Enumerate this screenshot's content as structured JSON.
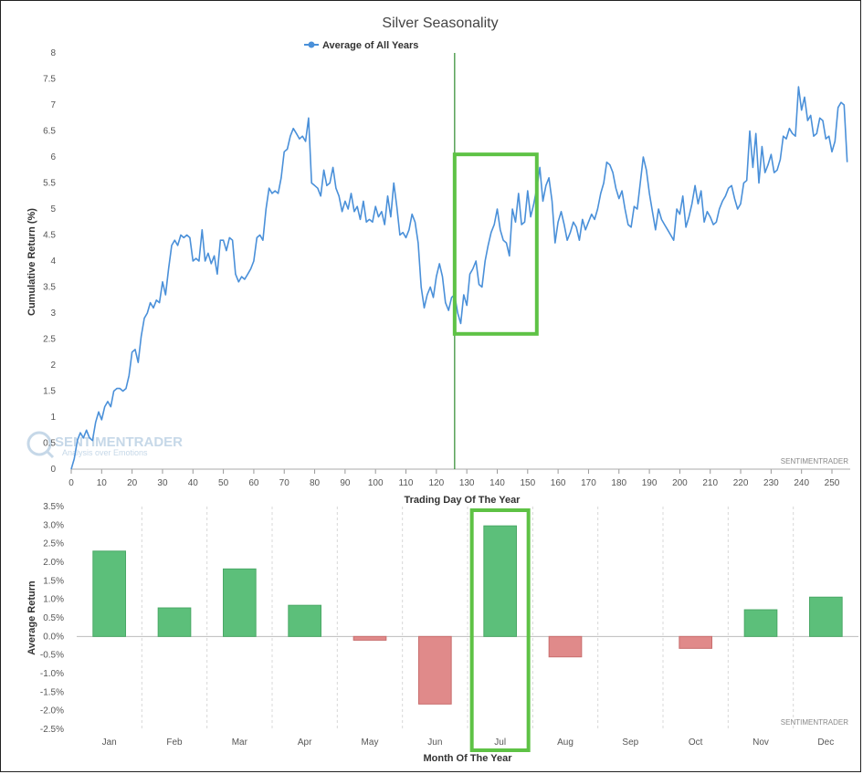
{
  "chart_data": [
    {
      "type": "line",
      "title": "Silver Seasonality",
      "xlabel": "Trading Day Of The Year",
      "ylabel": "Cumulative Return (%)",
      "xlim": [
        0,
        256
      ],
      "ylim": [
        0,
        8
      ],
      "x_ticks": [
        "0",
        "10",
        "20",
        "30",
        "40",
        "50",
        "60",
        "70",
        "80",
        "90",
        "100",
        "110",
        "120",
        "130",
        "140",
        "150",
        "160",
        "170",
        "180",
        "190",
        "200",
        "210",
        "220",
        "230",
        "240",
        "250"
      ],
      "y_ticks": [
        "0",
        "0.5",
        "1",
        "1.5",
        "2",
        "2.5",
        "3",
        "3.5",
        "4",
        "4.5",
        "5",
        "5.5",
        "6",
        "6.5",
        "7",
        "7.5",
        "8"
      ],
      "legend": "top-center",
      "credit": "SENTIMENTRADER",
      "watermark": {
        "name": "SENTIMENTRADER",
        "tagline": "Analysis over Emotions"
      },
      "vertical_marker_x": 126,
      "highlight_x_range": [
        126,
        153
      ],
      "highlight_y_range": [
        2.6,
        6.05
      ],
      "series": [
        {
          "name": "Average of All Years",
          "color": "#4a90d9",
          "points": [
            [
              0,
              0
            ],
            [
              1,
              0.2
            ],
            [
              2,
              0.55
            ],
            [
              3,
              0.7
            ],
            [
              4,
              0.6
            ],
            [
              5,
              0.75
            ],
            [
              6,
              0.6
            ],
            [
              7,
              0.55
            ],
            [
              8,
              0.9
            ],
            [
              9,
              1.1
            ],
            [
              10,
              0.95
            ],
            [
              11,
              1.2
            ],
            [
              12,
              1.3
            ],
            [
              13,
              1.2
            ],
            [
              14,
              1.5
            ],
            [
              15,
              1.55
            ],
            [
              16,
              1.55
            ],
            [
              17,
              1.5
            ],
            [
              18,
              1.55
            ],
            [
              19,
              1.8
            ],
            [
              20,
              2.25
            ],
            [
              21,
              2.3
            ],
            [
              22,
              2.05
            ],
            [
              23,
              2.55
            ],
            [
              24,
              2.9
            ],
            [
              25,
              3.0
            ],
            [
              26,
              3.2
            ],
            [
              27,
              3.1
            ],
            [
              28,
              3.25
            ],
            [
              29,
              3.2
            ],
            [
              30,
              3.6
            ],
            [
              31,
              3.35
            ],
            [
              32,
              3.85
            ],
            [
              33,
              4.3
            ],
            [
              34,
              4.4
            ],
            [
              35,
              4.3
            ],
            [
              36,
              4.5
            ],
            [
              37,
              4.45
            ],
            [
              38,
              4.5
            ],
            [
              39,
              4.45
            ],
            [
              40,
              4.0
            ],
            [
              41,
              4.05
            ],
            [
              42,
              4.0
            ],
            [
              43,
              4.6
            ],
            [
              44,
              4.0
            ],
            [
              45,
              4.15
            ],
            [
              46,
              3.95
            ],
            [
              47,
              4.1
            ],
            [
              48,
              3.75
            ],
            [
              49,
              4.4
            ],
            [
              50,
              4.4
            ],
            [
              51,
              4.2
            ],
            [
              52,
              4.45
            ],
            [
              53,
              4.4
            ],
            [
              54,
              3.75
            ],
            [
              55,
              3.6
            ],
            [
              56,
              3.7
            ],
            [
              57,
              3.65
            ],
            [
              58,
              3.75
            ],
            [
              59,
              3.85
            ],
            [
              60,
              4.0
            ],
            [
              61,
              4.45
            ],
            [
              62,
              4.5
            ],
            [
              63,
              4.4
            ],
            [
              64,
              5.0
            ],
            [
              65,
              5.4
            ],
            [
              66,
              5.3
            ],
            [
              67,
              5.35
            ],
            [
              68,
              5.3
            ],
            [
              69,
              5.6
            ],
            [
              70,
              6.1
            ],
            [
              71,
              6.15
            ],
            [
              72,
              6.4
            ],
            [
              73,
              6.55
            ],
            [
              74,
              6.45
            ],
            [
              75,
              6.35
            ],
            [
              76,
              6.4
            ],
            [
              77,
              6.3
            ],
            [
              78,
              6.75
            ],
            [
              79,
              5.5
            ],
            [
              80,
              5.45
            ],
            [
              81,
              5.4
            ],
            [
              82,
              5.25
            ],
            [
              83,
              5.75
            ],
            [
              84,
              5.45
            ],
            [
              85,
              5.5
            ],
            [
              86,
              5.8
            ],
            [
              87,
              5.4
            ],
            [
              88,
              5.25
            ],
            [
              89,
              4.95
            ],
            [
              90,
              5.15
            ],
            [
              91,
              5.0
            ],
            [
              92,
              5.3
            ],
            [
              93,
              4.95
            ],
            [
              94,
              5.05
            ],
            [
              95,
              4.8
            ],
            [
              96,
              5.15
            ],
            [
              97,
              4.75
            ],
            [
              98,
              4.8
            ],
            [
              99,
              4.75
            ],
            [
              100,
              5.05
            ],
            [
              101,
              4.85
            ],
            [
              102,
              4.95
            ],
            [
              103,
              4.7
            ],
            [
              104,
              5.25
            ],
            [
              105,
              4.85
            ],
            [
              106,
              5.5
            ],
            [
              107,
              5.05
            ],
            [
              108,
              4.5
            ],
            [
              109,
              4.55
            ],
            [
              110,
              4.45
            ],
            [
              111,
              4.6
            ],
            [
              112,
              4.9
            ],
            [
              113,
              4.75
            ],
            [
              114,
              4.35
            ],
            [
              115,
              3.5
            ],
            [
              116,
              3.1
            ],
            [
              117,
              3.35
            ],
            [
              118,
              3.5
            ],
            [
              119,
              3.3
            ],
            [
              120,
              3.7
            ],
            [
              121,
              3.95
            ],
            [
              122,
              3.7
            ],
            [
              123,
              3.2
            ],
            [
              124,
              3.05
            ],
            [
              125,
              3.3
            ],
            [
              126,
              3.35
            ],
            [
              127,
              3.0
            ],
            [
              128,
              2.8
            ],
            [
              129,
              3.35
            ],
            [
              130,
              3.15
            ],
            [
              131,
              3.75
            ],
            [
              132,
              3.85
            ],
            [
              133,
              4.0
            ],
            [
              134,
              3.55
            ],
            [
              135,
              3.5
            ],
            [
              136,
              4.0
            ],
            [
              137,
              4.3
            ],
            [
              138,
              4.55
            ],
            [
              139,
              4.7
            ],
            [
              140,
              5.0
            ],
            [
              141,
              4.6
            ],
            [
              142,
              4.4
            ],
            [
              143,
              4.35
            ],
            [
              144,
              4.1
            ],
            [
              145,
              5.0
            ],
            [
              146,
              4.75
            ],
            [
              147,
              5.3
            ],
            [
              148,
              4.7
            ],
            [
              149,
              4.75
            ],
            [
              150,
              5.35
            ],
            [
              151,
              4.85
            ],
            [
              152,
              5.1
            ],
            [
              153,
              5.4
            ],
            [
              154,
              5.8
            ],
            [
              155,
              5.15
            ],
            [
              156,
              5.45
            ],
            [
              157,
              5.6
            ],
            [
              158,
              5.15
            ],
            [
              159,
              4.35
            ],
            [
              160,
              4.75
            ],
            [
              161,
              4.95
            ],
            [
              162,
              4.7
            ],
            [
              163,
              4.4
            ],
            [
              164,
              4.55
            ],
            [
              165,
              4.75
            ],
            [
              166,
              4.65
            ],
            [
              167,
              4.4
            ],
            [
              168,
              4.8
            ],
            [
              169,
              4.6
            ],
            [
              170,
              4.75
            ],
            [
              171,
              4.9
            ],
            [
              172,
              4.8
            ],
            [
              173,
              5.0
            ],
            [
              174,
              5.3
            ],
            [
              175,
              5.5
            ],
            [
              176,
              5.9
            ],
            [
              177,
              5.85
            ],
            [
              178,
              5.7
            ],
            [
              179,
              5.4
            ],
            [
              180,
              5.2
            ],
            [
              181,
              5.35
            ],
            [
              182,
              5.0
            ],
            [
              183,
              4.7
            ],
            [
              184,
              4.65
            ],
            [
              185,
              5.05
            ],
            [
              186,
              5.0
            ],
            [
              187,
              5.5
            ],
            [
              188,
              6.0
            ],
            [
              189,
              5.75
            ],
            [
              190,
              5.3
            ],
            [
              191,
              4.95
            ],
            [
              192,
              4.6
            ],
            [
              193,
              5.0
            ],
            [
              194,
              4.8
            ],
            [
              195,
              4.7
            ],
            [
              196,
              4.6
            ],
            [
              197,
              4.5
            ],
            [
              198,
              4.4
            ],
            [
              199,
              5.0
            ],
            [
              200,
              4.9
            ],
            [
              201,
              5.25
            ],
            [
              202,
              4.65
            ],
            [
              203,
              4.85
            ],
            [
              204,
              5.1
            ],
            [
              205,
              5.45
            ],
            [
              206,
              5.1
            ],
            [
              207,
              5.35
            ],
            [
              208,
              4.75
            ],
            [
              209,
              4.95
            ],
            [
              210,
              4.85
            ],
            [
              211,
              4.7
            ],
            [
              212,
              4.75
            ],
            [
              213,
              5.0
            ],
            [
              214,
              5.15
            ],
            [
              215,
              5.25
            ],
            [
              216,
              5.4
            ],
            [
              217,
              5.45
            ],
            [
              218,
              5.2
            ],
            [
              219,
              5.0
            ],
            [
              220,
              5.1
            ],
            [
              221,
              5.5
            ],
            [
              222,
              5.55
            ],
            [
              223,
              6.5
            ],
            [
              224,
              5.8
            ],
            [
              225,
              6.45
            ],
            [
              226,
              5.5
            ],
            [
              227,
              6.2
            ],
            [
              228,
              5.7
            ],
            [
              229,
              5.85
            ],
            [
              230,
              6.05
            ],
            [
              231,
              5.7
            ],
            [
              232,
              5.75
            ],
            [
              233,
              5.95
            ],
            [
              234,
              6.4
            ],
            [
              235,
              6.35
            ],
            [
              236,
              6.55
            ],
            [
              237,
              6.45
            ],
            [
              238,
              6.4
            ],
            [
              239,
              7.35
            ],
            [
              240,
              6.9
            ],
            [
              241,
              7.15
            ],
            [
              242,
              6.7
            ],
            [
              243,
              6.8
            ],
            [
              244,
              6.4
            ],
            [
              245,
              6.45
            ],
            [
              246,
              6.75
            ],
            [
              247,
              6.7
            ],
            [
              248,
              6.35
            ],
            [
              249,
              6.4
            ],
            [
              250,
              6.1
            ],
            [
              251,
              6.3
            ],
            [
              252,
              6.95
            ],
            [
              253,
              7.05
            ],
            [
              254,
              7.0
            ],
            [
              255,
              5.9
            ]
          ]
        }
      ]
    },
    {
      "type": "bar",
      "xlabel": "Month Of The Year",
      "ylabel": "Average Return",
      "ylim": [
        -2.5,
        3.5
      ],
      "y_ticks": [
        "3.5%",
        "3.0%",
        "2.5%",
        "2.0%",
        "1.5%",
        "1.0%",
        "0.5%",
        "0.0%",
        "-0.5%",
        "-1.0%",
        "-1.5%",
        "-2.0%",
        "-2.5%"
      ],
      "credit": "SENTIMENTRADER",
      "categories": [
        "Jan",
        "Feb",
        "Mar",
        "Apr",
        "May",
        "Jun",
        "Jul",
        "Aug",
        "Sep",
        "Oct",
        "Nov",
        "Dec"
      ],
      "values": [
        2.3,
        0.77,
        1.82,
        0.84,
        -0.1,
        -1.82,
        2.98,
        -0.55,
        0.0,
        -0.32,
        0.72,
        1.06
      ],
      "highlight_category": "Jul",
      "positive_color": "#5cbf7a",
      "negative_color": "#e08a8a",
      "highlight_color": "#5ec245"
    }
  ]
}
